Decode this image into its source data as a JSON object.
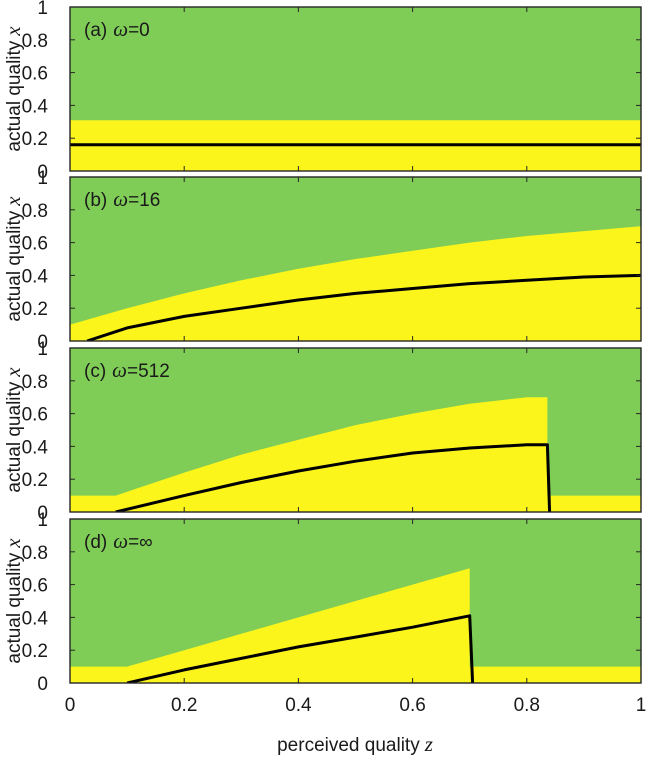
{
  "chart_data": {
    "type": "area",
    "xlabel": "perceived quality",
    "xlabel_var": "z",
    "ylabel": "actual quality",
    "ylabel_var": "x",
    "xlim": [
      0,
      1
    ],
    "ylim": [
      0,
      1
    ],
    "x_ticks": [
      "0",
      "0.2",
      "0.4",
      "0.6",
      "0.8",
      "1"
    ],
    "y_ticks": [
      "0",
      "0.2",
      "0.4",
      "0.6",
      "0.8",
      "1"
    ],
    "colors": {
      "background_region": "#7fcc57",
      "band_region": "#fbf51b",
      "curve": "#000000"
    },
    "panels": [
      {
        "label": "(a)",
        "omega_symbol": "ω",
        "omega_value": "=0",
        "band_upper": {
          "x": [
            0,
            1
          ],
          "y": [
            0.31,
            0.31
          ]
        },
        "band_lower": {
          "x": [
            0,
            1
          ],
          "y": [
            0,
            0
          ]
        },
        "curve": {
          "x": [
            0,
            1
          ],
          "y": [
            0.16,
            0.16
          ]
        }
      },
      {
        "label": "(b)",
        "omega_symbol": "ω",
        "omega_value": "=16",
        "band_upper": {
          "x": [
            0,
            0.1,
            0.2,
            0.3,
            0.4,
            0.5,
            0.6,
            0.7,
            0.8,
            0.9,
            1.0
          ],
          "y": [
            0.1,
            0.2,
            0.29,
            0.37,
            0.44,
            0.5,
            0.55,
            0.6,
            0.64,
            0.67,
            0.7
          ]
        },
        "band_lower": {
          "x": [
            0,
            1
          ],
          "y": [
            0,
            0
          ]
        },
        "curve": {
          "x": [
            0.03,
            0.1,
            0.2,
            0.3,
            0.4,
            0.5,
            0.6,
            0.7,
            0.8,
            0.9,
            1.0
          ],
          "y": [
            0.0,
            0.08,
            0.15,
            0.2,
            0.25,
            0.29,
            0.32,
            0.35,
            0.37,
            0.39,
            0.4
          ]
        }
      },
      {
        "label": "(c)",
        "omega_symbol": "ω",
        "omega_value": "=512",
        "band_upper": {
          "x": [
            0,
            0.08,
            0.2,
            0.3,
            0.4,
            0.5,
            0.6,
            0.7,
            0.8,
            0.836,
            0.836,
            1.0
          ],
          "y": [
            0.1,
            0.1,
            0.24,
            0.35,
            0.44,
            0.53,
            0.6,
            0.66,
            0.7,
            0.7,
            0.1,
            0.1
          ]
        },
        "band_lower": {
          "x": [
            0,
            1
          ],
          "y": [
            0,
            0
          ]
        },
        "curve": {
          "x": [
            0.08,
            0.2,
            0.3,
            0.4,
            0.5,
            0.6,
            0.7,
            0.8,
            0.836,
            0.84
          ],
          "y": [
            0.0,
            0.1,
            0.18,
            0.25,
            0.31,
            0.36,
            0.39,
            0.41,
            0.41,
            0.0
          ]
        }
      },
      {
        "label": "(d)",
        "omega_symbol": "ω",
        "omega_value": "=∞",
        "band_upper": {
          "x": [
            0,
            0.1,
            0.2,
            0.3,
            0.4,
            0.5,
            0.6,
            0.7,
            0.7,
            1.0
          ],
          "y": [
            0.1,
            0.1,
            0.2,
            0.3,
            0.4,
            0.5,
            0.6,
            0.7,
            0.1,
            0.1
          ]
        },
        "band_lower": {
          "x": [
            0,
            1
          ],
          "y": [
            0,
            0
          ]
        },
        "curve": {
          "x": [
            0.1,
            0.2,
            0.3,
            0.4,
            0.5,
            0.6,
            0.7,
            0.705
          ],
          "y": [
            0.0,
            0.08,
            0.15,
            0.22,
            0.28,
            0.34,
            0.41,
            0.0
          ]
        }
      }
    ]
  }
}
